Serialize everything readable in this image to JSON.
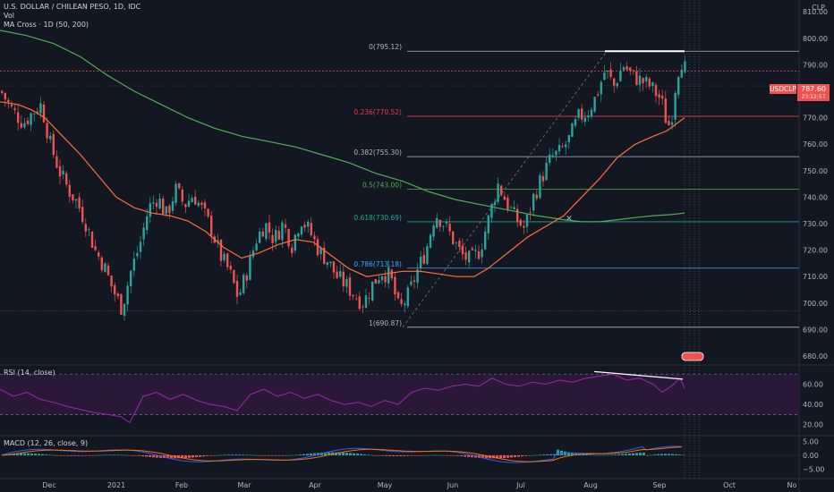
{
  "header": {
    "symbol": "U.S. DOLLAR / CHILEAN PESO, 1D, IDC",
    "vol": "Vol",
    "ma_cross": "MA Cross · 1D (50, 200)",
    "currency": "CLP"
  },
  "price_badge": {
    "symbol": "USDCLP",
    "price": "787.60",
    "countdown": "23:12:57"
  },
  "rsi_label": "RSI (14, close)",
  "macd_label": "MACD (12, 26, close, 9)",
  "colors": {
    "background": "#131722",
    "up": "#26a69a",
    "down": "#ef5350",
    "ma_fast": "#ff6d3a",
    "ma_slow": "#4caf50",
    "rsi_line": "#9c27b0",
    "rsi_band": "#2a1838",
    "macd_line": "#2962ff",
    "signal_line": "#ff6d00",
    "resistance_line": "#ffffff",
    "badge": "#ef5350"
  },
  "chart_data": [
    {
      "type": "candlestick",
      "title": "U.S. DOLLAR / CHILEAN PESO, 1D, IDC",
      "ylabel": "CLP",
      "ylim": [
        680,
        815
      ],
      "y_ticks": [
        810,
        800,
        790,
        780,
        770,
        760,
        750,
        740,
        730,
        720,
        710,
        700,
        690,
        680
      ],
      "x_ticks": [
        "Dec",
        "2021",
        "Feb",
        "Mar",
        "Apr",
        "May",
        "Jun",
        "Jul",
        "Aug",
        "Sep",
        "Oct",
        "No"
      ],
      "last_price": 787.6,
      "fib_levels": [
        {
          "label": "0(795.12)",
          "ratio": 0,
          "price": 795.12,
          "color": "#b2b5be"
        },
        {
          "label": "0.236(770.52)",
          "ratio": 0.236,
          "price": 770.52,
          "color": "#f23645"
        },
        {
          "label": "0.382(755.30)",
          "ratio": 0.382,
          "price": 755.3,
          "color": "#b2b5be"
        },
        {
          "label": "0.5(743.00)",
          "ratio": 0.5,
          "price": 743.0,
          "color": "#4caf50"
        },
        {
          "label": "0.618(730.69)",
          "ratio": 0.618,
          "price": 730.69,
          "color": "#26a69a"
        },
        {
          "label": "0.786(713.18)",
          "ratio": 0.786,
          "price": 713.18,
          "color": "#42a5f5"
        },
        {
          "label": "1(690.87)",
          "ratio": 1,
          "price": 690.87,
          "color": "#b2b5be"
        }
      ],
      "horizontal_levels": [
        782.0,
        697.0
      ],
      "close_path": [
        [
          0,
          780
        ],
        [
          12,
          773
        ],
        [
          25,
          768
        ],
        [
          35,
          772
        ],
        [
          45,
          775
        ],
        [
          55,
          760
        ],
        [
          65,
          750
        ],
        [
          75,
          743
        ],
        [
          85,
          738
        ],
        [
          95,
          730
        ],
        [
          105,
          720
        ],
        [
          115,
          714
        ],
        [
          125,
          705
        ],
        [
          135,
          698
        ],
        [
          145,
          712
        ],
        [
          155,
          722
        ],
        [
          165,
          736
        ],
        [
          175,
          740
        ],
        [
          185,
          733
        ],
        [
          195,
          743
        ],
        [
          205,
          737
        ],
        [
          215,
          741
        ],
        [
          225,
          735
        ],
        [
          235,
          728
        ],
        [
          245,
          718
        ],
        [
          255,
          712
        ],
        [
          265,
          702
        ],
        [
          275,
          712
        ],
        [
          285,
          724
        ],
        [
          295,
          730
        ],
        [
          305,
          724
        ],
        [
          315,
          730
        ],
        [
          325,
          722
        ],
        [
          335,
          732
        ],
        [
          345,
          727
        ],
        [
          355,
          720
        ],
        [
          365,
          716
        ],
        [
          375,
          710
        ],
        [
          385,
          707
        ],
        [
          395,
          703
        ],
        [
          405,
          700
        ],
        [
          415,
          707
        ],
        [
          425,
          712
        ],
        [
          435,
          710
        ],
        [
          445,
          697
        ],
        [
          455,
          703
        ],
        [
          465,
          712
        ],
        [
          475,
          720
        ],
        [
          485,
          734
        ],
        [
          495,
          730
        ],
        [
          505,
          724
        ],
        [
          515,
          718
        ],
        [
          525,
          716
        ],
        [
          535,
          720
        ],
        [
          545,
          732
        ],
        [
          555,
          745
        ],
        [
          565,
          738
        ],
        [
          575,
          732
        ],
        [
          585,
          728
        ],
        [
          595,
          740
        ],
        [
          605,
          748
        ],
        [
          615,
          755
        ],
        [
          625,
          757
        ],
        [
          635,
          762
        ],
        [
          645,
          770
        ],
        [
          655,
          772
        ],
        [
          665,
          778
        ],
        [
          675,
          788
        ],
        [
          685,
          782
        ],
        [
          695,
          790
        ],
        [
          705,
          786
        ],
        [
          715,
          784
        ],
        [
          725,
          782
        ],
        [
          735,
          778
        ],
        [
          740,
          774
        ],
        [
          745,
          766
        ],
        [
          750,
          772
        ],
        [
          755,
          786
        ],
        [
          760,
          792
        ],
        [
          765,
          788
        ]
      ],
      "ma50_path": [
        [
          0,
          776
        ],
        [
          20,
          775
        ],
        [
          35,
          773
        ],
        [
          50,
          770
        ],
        [
          70,
          763
        ],
        [
          90,
          756
        ],
        [
          110,
          748
        ],
        [
          130,
          740
        ],
        [
          150,
          736
        ],
        [
          170,
          734
        ],
        [
          190,
          733
        ],
        [
          210,
          731
        ],
        [
          230,
          727
        ],
        [
          250,
          721
        ],
        [
          270,
          717
        ],
        [
          290,
          719
        ],
        [
          310,
          722
        ],
        [
          330,
          724
        ],
        [
          350,
          723
        ],
        [
          370,
          718
        ],
        [
          390,
          713
        ],
        [
          410,
          710
        ],
        [
          430,
          711
        ],
        [
          450,
          712
        ],
        [
          470,
          712
        ],
        [
          490,
          711
        ],
        [
          510,
          710
        ],
        [
          530,
          710
        ],
        [
          545,
          713
        ],
        [
          560,
          717
        ],
        [
          575,
          721
        ],
        [
          590,
          725
        ],
        [
          610,
          729
        ],
        [
          630,
          733
        ],
        [
          650,
          740
        ],
        [
          670,
          747
        ],
        [
          690,
          755
        ],
        [
          710,
          760
        ],
        [
          730,
          763
        ],
        [
          745,
          765
        ],
        [
          765,
          770
        ]
      ],
      "ma200_path": [
        [
          0,
          803
        ],
        [
          30,
          801
        ],
        [
          60,
          798
        ],
        [
          90,
          793
        ],
        [
          120,
          786
        ],
        [
          150,
          780
        ],
        [
          180,
          775
        ],
        [
          210,
          770
        ],
        [
          240,
          766
        ],
        [
          270,
          763
        ],
        [
          300,
          761
        ],
        [
          330,
          759
        ],
        [
          360,
          756
        ],
        [
          390,
          753
        ],
        [
          420,
          749
        ],
        [
          450,
          746
        ],
        [
          480,
          742
        ],
        [
          510,
          739
        ],
        [
          540,
          737
        ],
        [
          570,
          735
        ],
        [
          600,
          733
        ],
        [
          630,
          731.5
        ],
        [
          650,
          730.7
        ],
        [
          670,
          730.7
        ],
        [
          690,
          731.5
        ],
        [
          710,
          732.3
        ],
        [
          730,
          733
        ],
        [
          750,
          733.4
        ],
        [
          765,
          734
        ]
      ]
    },
    {
      "type": "line",
      "title": "RSI (14, close)",
      "ylim": [
        10,
        80
      ],
      "y_ticks": [
        60.0,
        40.0,
        20.0
      ],
      "bands": [
        70,
        30
      ],
      "x": [
        0,
        15,
        30,
        45,
        60,
        75,
        90,
        105,
        120,
        135,
        145,
        160,
        175,
        190,
        205,
        220,
        235,
        250,
        265,
        280,
        295,
        310,
        325,
        340,
        355,
        370,
        385,
        400,
        415,
        430,
        445,
        460,
        475,
        490,
        505,
        520,
        535,
        550,
        565,
        580,
        595,
        610,
        625,
        640,
        655,
        670,
        685,
        700,
        715,
        730,
        740,
        750,
        760,
        765
      ],
      "values": [
        55,
        48,
        52,
        45,
        42,
        38,
        35,
        32,
        30,
        28,
        22,
        48,
        52,
        45,
        50,
        44,
        40,
        38,
        34,
        50,
        55,
        48,
        52,
        46,
        50,
        44,
        40,
        42,
        38,
        44,
        40,
        52,
        56,
        54,
        58,
        60,
        58,
        66,
        60,
        58,
        62,
        60,
        64,
        62,
        66,
        68,
        70,
        64,
        66,
        60,
        52,
        58,
        66,
        56
      ]
    },
    {
      "type": "bar+line",
      "title": "MACD (12, 26, close, 9)",
      "ylim": [
        -6,
        9
      ],
      "y_ticks": [
        5.0,
        0.0,
        -5.0
      ]
    }
  ]
}
